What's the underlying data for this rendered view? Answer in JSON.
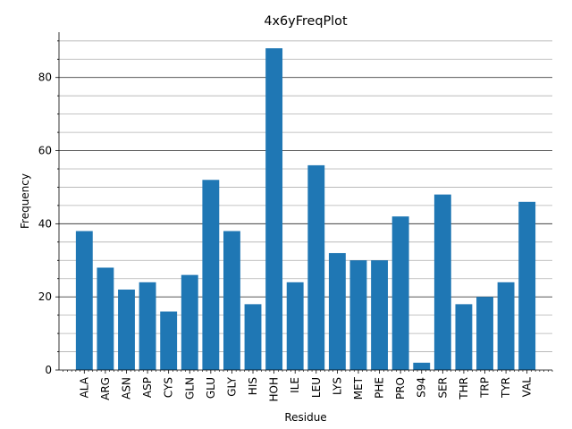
{
  "chart_data": {
    "type": "bar",
    "title": "4x6yFreqPlot",
    "xlabel": "Residue",
    "ylabel": "Frequency",
    "categories": [
      "ALA",
      "ARG",
      "ASN",
      "ASP",
      "CYS",
      "GLN",
      "GLU",
      "GLY",
      "HIS",
      "HOH",
      "ILE",
      "LEU",
      "LYS",
      "MET",
      "PHE",
      "PRO",
      "S94",
      "SER",
      "THR",
      "TRP",
      "TYR",
      "VAL"
    ],
    "values": [
      38,
      28,
      22,
      24,
      16,
      26,
      52,
      38,
      18,
      88,
      24,
      56,
      32,
      30,
      30,
      42,
      2,
      48,
      18,
      20,
      24,
      46
    ],
    "ylim": [
      0,
      92.4
    ],
    "yticks_major": [
      0,
      20,
      40,
      60,
      80
    ],
    "yticks_minor_step": 5,
    "grid": "y-axis major and minor lines",
    "bar_color": "#1f77b4",
    "major_grid_color": "#404040",
    "minor_grid_color": "#b0b0b0"
  }
}
